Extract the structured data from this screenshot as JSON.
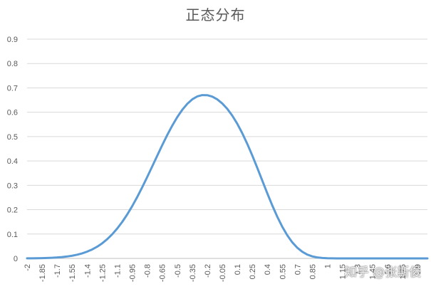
{
  "chart_data": {
    "type": "line",
    "title": "正态分布",
    "xlabel": "",
    "ylabel": "",
    "ylim": [
      0,
      0.9
    ],
    "yticks": [
      0,
      0.1,
      0.2,
      0.3,
      0.4,
      0.5,
      0.6,
      0.7,
      0.8,
      0.9
    ],
    "ytick_labels": [
      "0",
      "0.1",
      "0.2",
      "0.3",
      "0.4",
      "0.5",
      "0.6",
      "0.7",
      "0.8",
      "0.9"
    ],
    "xtick_labels": [
      "-2",
      "-1.85",
      "-1.7",
      "-1.55",
      "-1.4",
      "-1.25",
      "-1.1",
      "-0.95",
      "-0.8",
      "-0.65",
      "-0.5",
      "-0.35",
      "-0.2",
      "-0.05",
      "0.1",
      "0.25",
      "0.4",
      "0.55",
      "0.7",
      "0.85",
      "1",
      "1.15",
      "1.3",
      "1.45",
      "1.6",
      "1.75",
      "1.9"
    ],
    "grid": true,
    "line_color": "#5B9BD5",
    "series": [
      {
        "x": [
          -2,
          -1.95,
          -1.9,
          -1.85,
          -1.8,
          -1.75,
          -1.7,
          -1.65,
          -1.6,
          -1.55,
          -1.5,
          -1.45,
          -1.4,
          -1.35,
          -1.3,
          -1.25,
          -1.2,
          -1.15,
          -1.1,
          -1.05,
          -1,
          -0.95,
          -0.9,
          -0.85,
          -0.8,
          -0.75,
          -0.7,
          -0.65,
          -0.6,
          -0.55,
          -0.5,
          -0.45,
          -0.4,
          -0.35,
          -0.3,
          -0.25,
          -0.2,
          -0.15,
          -0.1,
          -0.05,
          0,
          0.05,
          0.1,
          0.15,
          0.2,
          0.25,
          0.3,
          0.35,
          0.4,
          0.45,
          0.5,
          0.55,
          0.6,
          0.65,
          0.7,
          0.75,
          0.8,
          0.85,
          0.9,
          0.95,
          1,
          1.05,
          1.1,
          1.15,
          1.2,
          1.25,
          1.3,
          1.35,
          1.4,
          1.45,
          1.5,
          1.55,
          1.6,
          1.65,
          1.7,
          1.75,
          1.8,
          1.85,
          1.9,
          1.95,
          2
        ],
        "values": [
          0.0003,
          0.0005,
          0.0008,
          0.0012,
          0.0018,
          0.0027,
          0.0039,
          0.0056,
          0.0079,
          0.011,
          0.0151,
          0.0206,
          0.0277,
          0.0367,
          0.048,
          0.0619,
          0.0787,
          0.0988,
          0.1223,
          0.1494,
          0.1801,
          0.2142,
          0.2516,
          0.2916,
          0.3338,
          0.3773,
          0.4212,
          0.4645,
          0.506,
          0.5447,
          0.5796,
          0.6097,
          0.6343,
          0.6528,
          0.6648,
          0.6704,
          0.67,
          0.6641,
          0.6528,
          0.6361,
          0.614,
          0.5862,
          0.5528,
          0.5139,
          0.4702,
          0.4224,
          0.3716,
          0.3193,
          0.2672,
          0.2172,
          0.1709,
          0.1297,
          0.0945,
          0.0659,
          0.0436,
          0.0271,
          0.0157,
          0.0083,
          0.004,
          0.0017,
          0.0006,
          0.0002,
          0.0,
          0.0,
          0.0,
          0.0,
          0.0,
          0.0,
          0.0,
          0.0,
          0.0,
          0.0,
          0.0,
          0.0,
          0.0,
          0.0,
          0.0,
          0.0,
          0.0,
          0.0,
          0.0
        ]
      }
    ]
  },
  "watermark": "知乎 @张斯俊"
}
